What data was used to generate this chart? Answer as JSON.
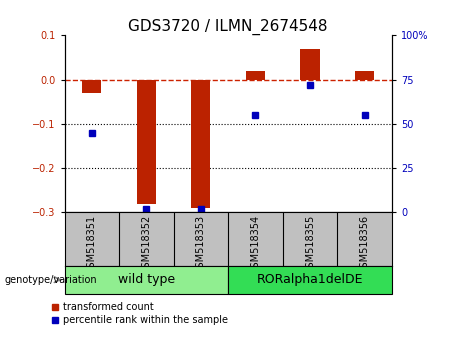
{
  "title": "GDS3720 / ILMN_2674548",
  "samples": [
    "GSM518351",
    "GSM518352",
    "GSM518353",
    "GSM518354",
    "GSM518355",
    "GSM518356"
  ],
  "red_values": [
    -0.03,
    -0.28,
    -0.29,
    0.02,
    0.07,
    0.02
  ],
  "blue_values": [
    45,
    2,
    2,
    55,
    72,
    55
  ],
  "ylim_left": [
    -0.3,
    0.1
  ],
  "ylim_right": [
    0,
    100
  ],
  "left_yticks": [
    -0.3,
    -0.2,
    -0.1,
    0.0,
    0.1
  ],
  "right_yticks": [
    0,
    25,
    50,
    75,
    100
  ],
  "right_yticklabels": [
    "0",
    "25",
    "50",
    "75",
    "100%"
  ],
  "groups": [
    {
      "label": "wild type",
      "samples": [
        0,
        1,
        2
      ],
      "color": "#90EE90"
    },
    {
      "label": "RORalpha1delDE",
      "samples": [
        3,
        4,
        5
      ],
      "color": "#33DD55"
    }
  ],
  "red_color": "#BB2200",
  "blue_color": "#0000BB",
  "dashed_line_color": "#CC2200",
  "grid_color": "#000000",
  "bg_color": "#FFFFFF",
  "bar_width": 0.35,
  "group_label": "genotype/variation",
  "legend_red": "transformed count",
  "legend_blue": "percentile rank within the sample",
  "sample_bg_color": "#C0C0C0",
  "title_fontsize": 11,
  "tick_fontsize": 7,
  "group_fontsize": 9,
  "sample_fontsize": 7
}
